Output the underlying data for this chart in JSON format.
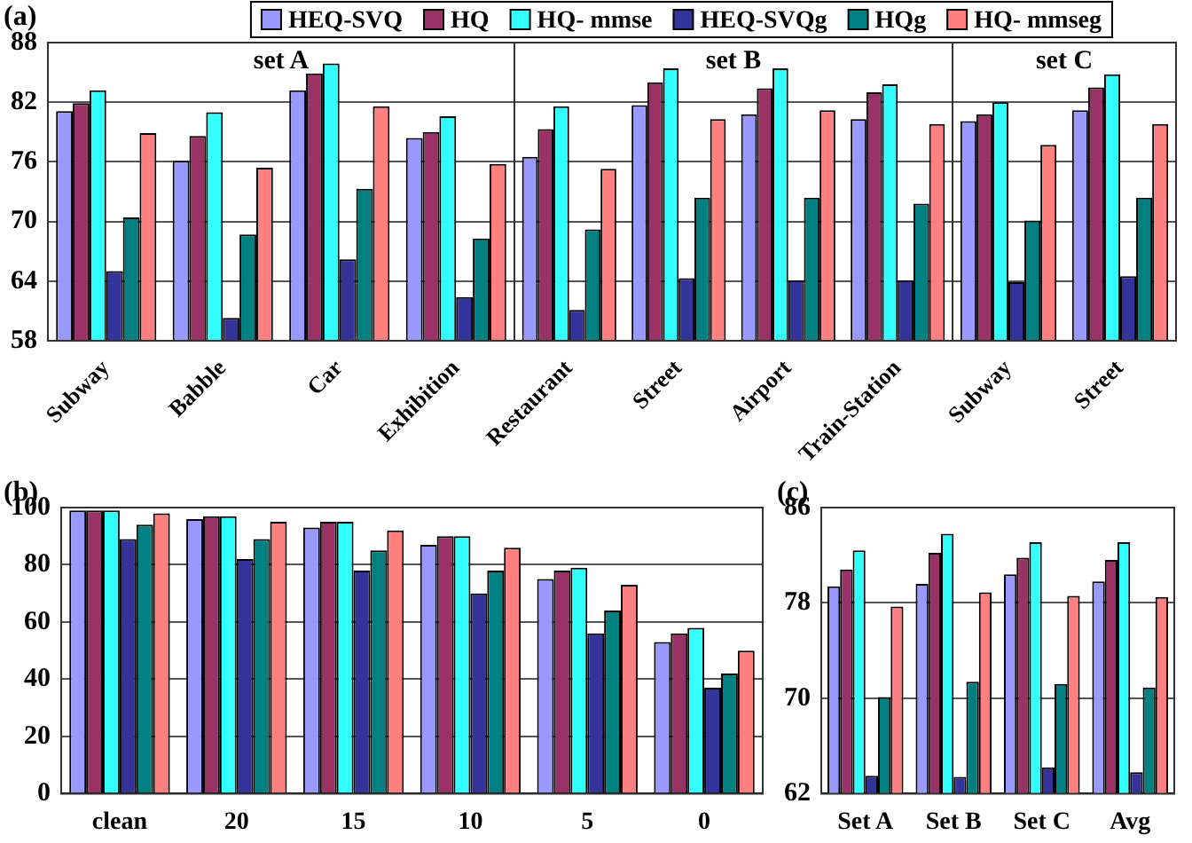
{
  "chart_data": [
    {
      "type": "bar",
      "title": "set A",
      "annotations": [
        "(a)"
      ],
      "categories": [
        "Subway",
        "Babble",
        "Car",
        "Exhibition"
      ],
      "series": [
        {
          "name": "HEQ-SVQ",
          "color": "#9999ff",
          "values": [
            81.1,
            76.1,
            83.2,
            78.4
          ]
        },
        {
          "name": "HQ",
          "color": "#993366",
          "values": [
            81.9,
            78.6,
            84.9,
            79.0
          ]
        },
        {
          "name": "HQ- mmse",
          "color": "#33ffff",
          "values": [
            83.2,
            81.0,
            85.9,
            80.6
          ]
        },
        {
          "name": "HEQ-SVQg",
          "color": "#333399",
          "values": [
            65.0,
            60.3,
            66.2,
            62.4
          ]
        },
        {
          "name": "HQg",
          "color": "#008080",
          "values": [
            70.4,
            68.7,
            73.3,
            68.3
          ]
        },
        {
          "name": "HQ- mmseg",
          "color": "#ff8080",
          "values": [
            78.9,
            75.4,
            81.6,
            75.8
          ]
        }
      ],
      "ylim": [
        58,
        88
      ],
      "yticks": [
        58,
        64,
        70,
        76,
        82,
        88
      ],
      "grid": "y",
      "legend": "top"
    },
    {
      "type": "bar",
      "title": "set B",
      "categories": [
        "Restaurant",
        "Street",
        "Airport",
        "Train-Station"
      ],
      "series": [
        {
          "color": "#9999ff",
          "values": [
            76.5,
            81.7,
            80.8,
            80.3
          ]
        },
        {
          "color": "#993366",
          "values": [
            79.3,
            84.0,
            83.4,
            83.0
          ]
        },
        {
          "color": "#33ffff",
          "values": [
            81.6,
            85.4,
            85.4,
            83.8
          ]
        },
        {
          "color": "#333399",
          "values": [
            61.1,
            64.3,
            64.1,
            64.1
          ]
        },
        {
          "color": "#008080",
          "values": [
            69.2,
            72.4,
            72.4,
            71.8
          ]
        },
        {
          "color": "#ff8080",
          "values": [
            75.3,
            80.3,
            81.2,
            79.8
          ]
        }
      ],
      "ylim": [
        58,
        88
      ],
      "yticks": [
        58,
        64,
        70,
        76,
        82,
        88
      ],
      "grid": "y",
      "tick_labels": "x"
    },
    {
      "type": "bar",
      "title": "set C",
      "categories": [
        "Subway",
        "Street"
      ],
      "series": [
        {
          "color": "#9999ff",
          "values": [
            80.1,
            81.2
          ]
        },
        {
          "color": "#993366",
          "values": [
            80.8,
            83.5
          ]
        },
        {
          "color": "#33ffff",
          "values": [
            82.0,
            84.8
          ]
        },
        {
          "color": "#333399",
          "values": [
            63.9,
            64.5
          ]
        },
        {
          "color": "#008080",
          "values": [
            70.1,
            72.4
          ]
        },
        {
          "color": "#ff8080",
          "values": [
            77.7,
            79.8
          ]
        }
      ],
      "ylim": [
        58,
        88
      ],
      "yticks": [
        58,
        64,
        70,
        76,
        82,
        88
      ],
      "grid": "y",
      "tick_labels": "x"
    },
    {
      "type": "bar",
      "annotations": [
        "(b)"
      ],
      "categories": [
        "clean",
        "20",
        "15",
        "10",
        "5",
        "0"
      ],
      "series": [
        {
          "color": "#9999ff",
          "values": [
            99,
            96,
            93,
            87,
            75,
            53
          ]
        },
        {
          "color": "#993366",
          "values": [
            99,
            97,
            95,
            90,
            78,
            56
          ]
        },
        {
          "color": "#33ffff",
          "values": [
            99,
            97,
            95,
            90,
            79,
            58
          ]
        },
        {
          "color": "#333399",
          "values": [
            89,
            82,
            78,
            70,
            56,
            37
          ]
        },
        {
          "color": "#008080",
          "values": [
            94,
            89,
            85,
            78,
            64,
            42
          ]
        },
        {
          "color": "#ff8080",
          "values": [
            98,
            95,
            92,
            86,
            73,
            50
          ]
        }
      ],
      "ylim": [
        0,
        100
      ],
      "yticks": [
        0,
        20,
        40,
        60,
        80,
        100
      ],
      "grid": "y"
    },
    {
      "type": "bar",
      "annotations": [
        "(c)"
      ],
      "categories": [
        "Set A",
        "Set B",
        "Set C",
        "Avg"
      ],
      "series": [
        {
          "color": "#9999ff",
          "values": [
            79.4,
            79.6,
            80.4,
            79.8
          ]
        },
        {
          "color": "#993366",
          "values": [
            80.8,
            82.2,
            81.8,
            81.6
          ]
        },
        {
          "color": "#33ffff",
          "values": [
            82.4,
            83.8,
            83.1,
            83.1
          ]
        },
        {
          "color": "#333399",
          "values": [
            63.5,
            63.4,
            64.2,
            63.8
          ]
        },
        {
          "color": "#008080",
          "values": [
            70.1,
            71.4,
            71.2,
            70.9
          ]
        },
        {
          "color": "#ff8080",
          "values": [
            77.7,
            78.9,
            78.6,
            78.5
          ]
        }
      ],
      "ylim": [
        62,
        86
      ],
      "yticks": [
        62,
        70,
        78,
        86
      ],
      "grid": "y"
    }
  ]
}
